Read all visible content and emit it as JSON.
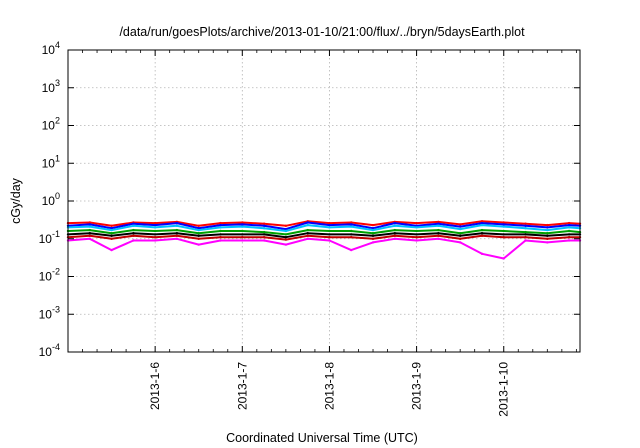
{
  "chart_data": {
    "type": "line",
    "title": "/data/run/goesPlots/archive/2013-01-10/21:00/flux/../bryn/5daysEarth.plot",
    "xlabel": "Coordinated Universal Time (UTC)",
    "ylabel": "cGy/day",
    "yscale": "log",
    "ylim": [
      "1e-4",
      "1e4"
    ],
    "xlim": [
      "2013-01-05",
      "2013-01-10 21:00"
    ],
    "grid": true,
    "y_ticks": [
      {
        "base": "10",
        "exp": "-4",
        "value": "1e-4"
      },
      {
        "base": "10",
        "exp": "-3",
        "value": "1e-3"
      },
      {
        "base": "10",
        "exp": "-2",
        "value": "1e-2"
      },
      {
        "base": "10",
        "exp": "-1",
        "value": "1e-1"
      },
      {
        "base": "10",
        "exp": "0",
        "value": "1e0"
      },
      {
        "base": "10",
        "exp": "1",
        "value": "1e1"
      },
      {
        "base": "10",
        "exp": "2",
        "value": "1e2"
      },
      {
        "base": "10",
        "exp": "3",
        "value": "1e3"
      },
      {
        "base": "10",
        "exp": "4",
        "value": "1e4"
      }
    ],
    "x_ticks": [
      {
        "label": "2013-1-6",
        "date": "2013-01-06"
      },
      {
        "label": "2013-1-7",
        "date": "2013-01-07"
      },
      {
        "label": "2013-1-8",
        "date": "2013-01-08"
      },
      {
        "label": "2013-1-9",
        "date": "2013-01-09"
      },
      {
        "label": "2013-1-10",
        "date": "2013-01-10"
      }
    ],
    "x": [
      "2013-01-05",
      "2013-01-05 06:00",
      "2013-01-05 12:00",
      "2013-01-05 18:00",
      "2013-01-06",
      "2013-01-06 06:00",
      "2013-01-06 12:00",
      "2013-01-06 18:00",
      "2013-01-07",
      "2013-01-07 06:00",
      "2013-01-07 12:00",
      "2013-01-07 18:00",
      "2013-01-08",
      "2013-01-08 06:00",
      "2013-01-08 12:00",
      "2013-01-08 18:00",
      "2013-01-09",
      "2013-01-09 06:00",
      "2013-01-09 12:00",
      "2013-01-09 18:00",
      "2013-01-10",
      "2013-01-10 06:00",
      "2013-01-10 12:00",
      "2013-01-10 18:00",
      "2013-01-10 21:00"
    ],
    "series": [
      {
        "color": "#ff0000",
        "values": [
          0.26,
          0.27,
          0.22,
          0.27,
          0.26,
          0.28,
          0.22,
          0.26,
          0.27,
          0.25,
          0.22,
          0.29,
          0.26,
          0.27,
          0.23,
          0.28,
          0.26,
          0.28,
          0.24,
          0.29,
          0.27,
          0.25,
          0.23,
          0.26,
          0.25
        ]
      },
      {
        "color": "#0000ff",
        "values": [
          0.22,
          0.24,
          0.19,
          0.25,
          0.23,
          0.26,
          0.19,
          0.23,
          0.24,
          0.22,
          0.18,
          0.27,
          0.23,
          0.24,
          0.19,
          0.26,
          0.22,
          0.25,
          0.21,
          0.26,
          0.24,
          0.22,
          0.2,
          0.23,
          0.22
        ]
      },
      {
        "color": "#00c0ff",
        "values": [
          0.2,
          0.21,
          0.17,
          0.22,
          0.2,
          0.22,
          0.17,
          0.2,
          0.21,
          0.19,
          0.16,
          0.23,
          0.2,
          0.21,
          0.17,
          0.22,
          0.2,
          0.22,
          0.18,
          0.23,
          0.21,
          0.19,
          0.17,
          0.2,
          0.19
        ]
      },
      {
        "color": "#00a000",
        "values": [
          0.16,
          0.17,
          0.14,
          0.17,
          0.16,
          0.17,
          0.14,
          0.16,
          0.16,
          0.15,
          0.13,
          0.17,
          0.16,
          0.16,
          0.14,
          0.17,
          0.16,
          0.17,
          0.14,
          0.17,
          0.16,
          0.15,
          0.14,
          0.16,
          0.15
        ]
      },
      {
        "color": "#000000",
        "values": [
          0.13,
          0.14,
          0.12,
          0.14,
          0.13,
          0.14,
          0.12,
          0.13,
          0.13,
          0.13,
          0.11,
          0.14,
          0.13,
          0.13,
          0.12,
          0.14,
          0.13,
          0.14,
          0.12,
          0.14,
          0.13,
          0.13,
          0.12,
          0.13,
          0.13
        ]
      },
      {
        "color": "#c00000",
        "values": [
          0.11,
          0.12,
          0.1,
          0.12,
          0.11,
          0.12,
          0.1,
          0.11,
          0.11,
          0.11,
          0.095,
          0.12,
          0.11,
          0.11,
          0.1,
          0.12,
          0.11,
          0.12,
          0.1,
          0.12,
          0.11,
          0.11,
          0.1,
          0.11,
          0.11
        ]
      },
      {
        "color": "#ff00ff",
        "values": [
          0.09,
          0.1,
          0.05,
          0.09,
          0.09,
          0.1,
          0.07,
          0.09,
          0.09,
          0.09,
          0.07,
          0.1,
          0.09,
          0.05,
          0.08,
          0.1,
          0.09,
          0.1,
          0.08,
          0.04,
          0.03,
          0.09,
          0.08,
          0.09,
          0.09
        ]
      }
    ]
  }
}
